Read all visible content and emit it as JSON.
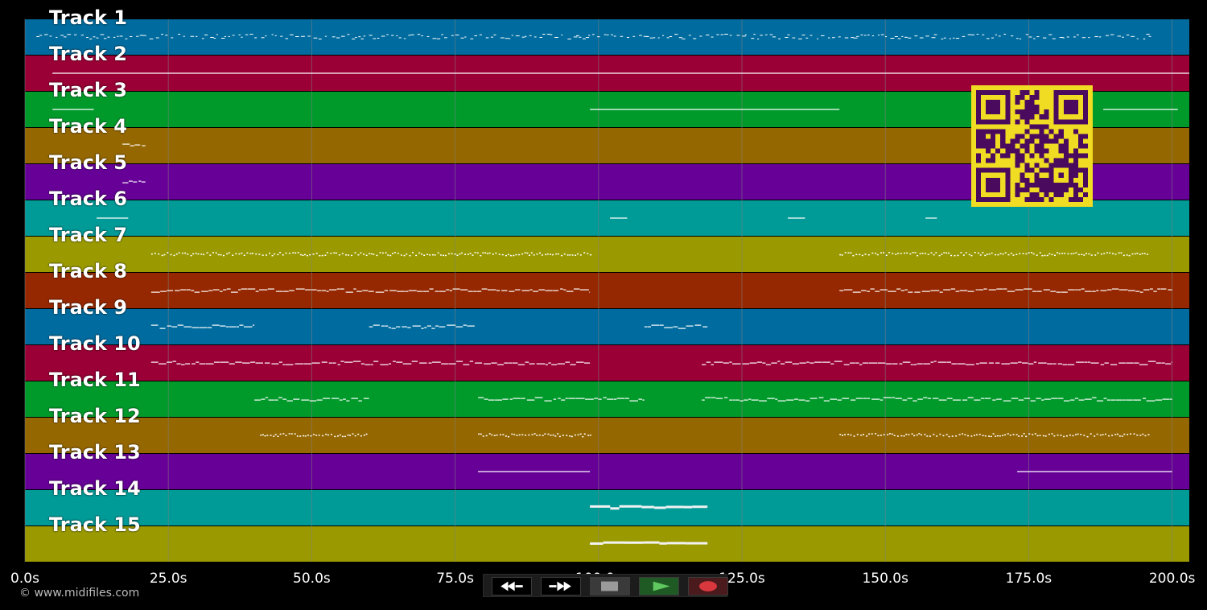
{
  "colors": {
    "background": "#000000",
    "note": "#ffffff",
    "grid": "#7f7f7f",
    "axis_text": "#ffffff",
    "qr_fg": "#f0dc22",
    "qr_bg": "#4a0a5e"
  },
  "tracks": [
    {
      "label": "Track 1",
      "color": "#006b9e"
    },
    {
      "label": "Track 2",
      "color": "#9a0035"
    },
    {
      "label": "Track 3",
      "color": "#009a2b"
    },
    {
      "label": "Track 4",
      "color": "#956700"
    },
    {
      "label": "Track 5",
      "color": "#660097"
    },
    {
      "label": "Track 6",
      "color": "#009a97"
    },
    {
      "label": "Track 7",
      "color": "#9a9a00"
    },
    {
      "label": "Track 8",
      "color": "#952800"
    },
    {
      "label": "Track 9",
      "color": "#006b9e"
    },
    {
      "label": "Track 10",
      "color": "#9a0035"
    },
    {
      "label": "Track 11",
      "color": "#009a2b"
    },
    {
      "label": "Track 12",
      "color": "#956700"
    },
    {
      "label": "Track 13",
      "color": "#660097"
    },
    {
      "label": "Track 14",
      "color": "#009a97"
    },
    {
      "label": "Track 15",
      "color": "#9a9a00"
    }
  ],
  "timeline": {
    "unit": "s",
    "max_seconds": 203,
    "ticks": [
      "0.0s",
      "25.0s",
      "50.0s",
      "75.0s",
      "100.0s",
      "125.0s",
      "150.0s",
      "175.0s",
      "200.0s"
    ],
    "tick_values": [
      0,
      25,
      50,
      75,
      100,
      125,
      150,
      175,
      200
    ]
  },
  "note_segments": [
    {
      "track": 1,
      "style": "sparse",
      "segments": [
        [
          2,
          196
        ]
      ]
    },
    {
      "track": 2,
      "style": "line",
      "segments": [
        [
          4.8,
          203
        ]
      ]
    },
    {
      "track": 3,
      "style": "line",
      "segments": [
        [
          4.8,
          12
        ],
        [
          98.5,
          142
        ],
        [
          188,
          201
        ]
      ]
    },
    {
      "track": 4,
      "style": "wave",
      "segments": [
        [
          17,
          21
        ]
      ]
    },
    {
      "track": 5,
      "style": "wave",
      "segments": [
        [
          17,
          21
        ]
      ]
    },
    {
      "track": 6,
      "style": "line",
      "segments": [
        [
          12.5,
          18
        ],
        [
          102,
          105
        ],
        [
          133,
          136
        ],
        [
          157,
          159
        ]
      ]
    },
    {
      "track": 7,
      "style": "dense",
      "segments": [
        [
          22,
          98.5
        ],
        [
          142,
          196
        ]
      ]
    },
    {
      "track": 8,
      "style": "wave",
      "segments": [
        [
          22,
          98.5
        ],
        [
          142,
          200
        ]
      ]
    },
    {
      "track": 9,
      "style": "wave",
      "segments": [
        [
          22,
          40
        ],
        [
          60,
          78.5
        ],
        [
          108,
          119
        ]
      ]
    },
    {
      "track": 10,
      "style": "wave",
      "segments": [
        [
          22,
          98.5
        ],
        [
          118,
          200
        ]
      ]
    },
    {
      "track": 11,
      "style": "wave",
      "segments": [
        [
          40,
          60
        ],
        [
          79,
          108
        ],
        [
          118,
          200
        ]
      ]
    },
    {
      "track": 12,
      "style": "dense",
      "segments": [
        [
          41,
          60
        ],
        [
          79,
          98.5
        ],
        [
          142,
          196
        ]
      ]
    },
    {
      "track": 13,
      "style": "line",
      "segments": [
        [
          79,
          98.5
        ],
        [
          173,
          200
        ]
      ]
    },
    {
      "track": 14,
      "style": "thick",
      "segments": [
        [
          98.5,
          119
        ]
      ]
    },
    {
      "track": 15,
      "style": "thick",
      "segments": [
        [
          98.5,
          119
        ]
      ]
    }
  ],
  "qr": {
    "icon": "qr-code"
  },
  "controls": [
    {
      "name": "rewind-button",
      "icon": "rewind-icon",
      "color": "#ffffff"
    },
    {
      "name": "fast-forward-button",
      "icon": "fast-forward-icon",
      "color": "#ffffff"
    },
    {
      "name": "stop-button",
      "icon": "stop-icon",
      "color": "#9a9a9a"
    },
    {
      "name": "play-button",
      "icon": "play-icon",
      "color": "#5fc85f"
    },
    {
      "name": "record-button",
      "icon": "record-icon",
      "color": "#d8383d"
    }
  ],
  "copyright": "© www.midifiles.com"
}
